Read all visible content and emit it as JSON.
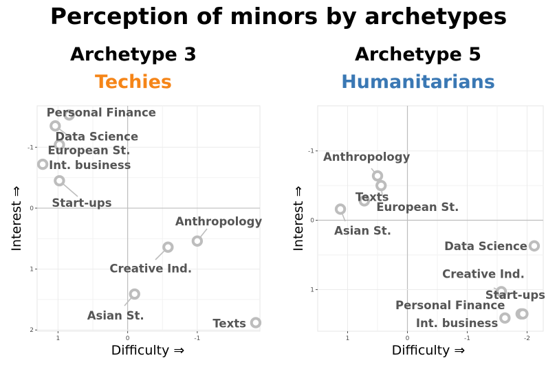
{
  "title": "Perception of minors by archetypes",
  "colors": {
    "techies": "#f58518",
    "humanitarians": "#3a78b4",
    "point": "#bdbdbd",
    "label": "#555555"
  },
  "chart_data": [
    {
      "type": "scatter",
      "archetype": "Archetype 3",
      "group_name": "Techies",
      "xlabel": "Difficulty ⇒",
      "ylabel": "Interest ⇒",
      "x_reversed": true,
      "y_reversed": true,
      "xlim": [
        1.3,
        -1.9
      ],
      "ylim": [
        -1.68,
        2.02
      ],
      "xticks": [
        {
          "v": 1,
          "t": "1"
        },
        {
          "v": 0,
          "t": "0"
        },
        {
          "v": -1,
          "t": "-1"
        }
      ],
      "yticks": [
        {
          "v": -1,
          "t": "-1"
        },
        {
          "v": 0,
          "t": "0"
        },
        {
          "v": 1,
          "t": "1"
        },
        {
          "v": 2,
          "t": "2"
        }
      ],
      "points": [
        {
          "label": "Personal Finance",
          "x": 0.84,
          "y": -1.53
        },
        {
          "label": "Data Science",
          "x": 1.04,
          "y": -1.35
        },
        {
          "label": "European St.",
          "x": 0.98,
          "y": -1.04
        },
        {
          "label": "Int. business",
          "x": 1.22,
          "y": -0.72
        },
        {
          "label": "Start-ups",
          "x": 0.98,
          "y": -0.45
        },
        {
          "label": "Anthropology",
          "x": -1.0,
          "y": 0.54
        },
        {
          "label": "Creative Ind.",
          "x": -0.58,
          "y": 0.64
        },
        {
          "label": "Asian St.",
          "x": -0.1,
          "y": 1.41
        },
        {
          "label": "Texts",
          "x": -1.84,
          "y": 1.88
        }
      ]
    },
    {
      "type": "scatter",
      "archetype": "Archetype 5",
      "group_name": "Humanitarians",
      "xlabel": "Difficulty ⇒",
      "ylabel": "Interest ⇒",
      "x_reversed": true,
      "y_reversed": true,
      "xlim": [
        1.5,
        -2.27
      ],
      "ylim": [
        -1.65,
        1.6
      ],
      "xticks": [
        {
          "v": 1,
          "t": "1"
        },
        {
          "v": 0,
          "t": "0"
        },
        {
          "v": -1,
          "t": "-1"
        },
        {
          "v": -2,
          "t": "-2"
        }
      ],
      "yticks": [
        {
          "v": -1,
          "t": "-1"
        },
        {
          "v": 0,
          "t": "0"
        },
        {
          "v": 1,
          "t": "1"
        }
      ],
      "points": [
        {
          "label": "Anthropology",
          "x": 0.5,
          "y": -0.64
        },
        {
          "label": "Texts",
          "x": 0.72,
          "y": -0.28
        },
        {
          "label": "European St.",
          "x": 0.44,
          "y": -0.5
        },
        {
          "label": "Asian St.",
          "x": 1.12,
          "y": -0.16
        },
        {
          "label": "Data Science",
          "x": -2.12,
          "y": 0.37
        },
        {
          "label": "Creative Ind.",
          "x": -1.57,
          "y": 1.03
        },
        {
          "label": "Start-ups",
          "x": -1.9,
          "y": 1.35
        },
        {
          "label": "Personal Finance",
          "x": -1.93,
          "y": 1.35
        },
        {
          "label": "Int. business",
          "x": -1.63,
          "y": 1.41
        }
      ]
    }
  ]
}
